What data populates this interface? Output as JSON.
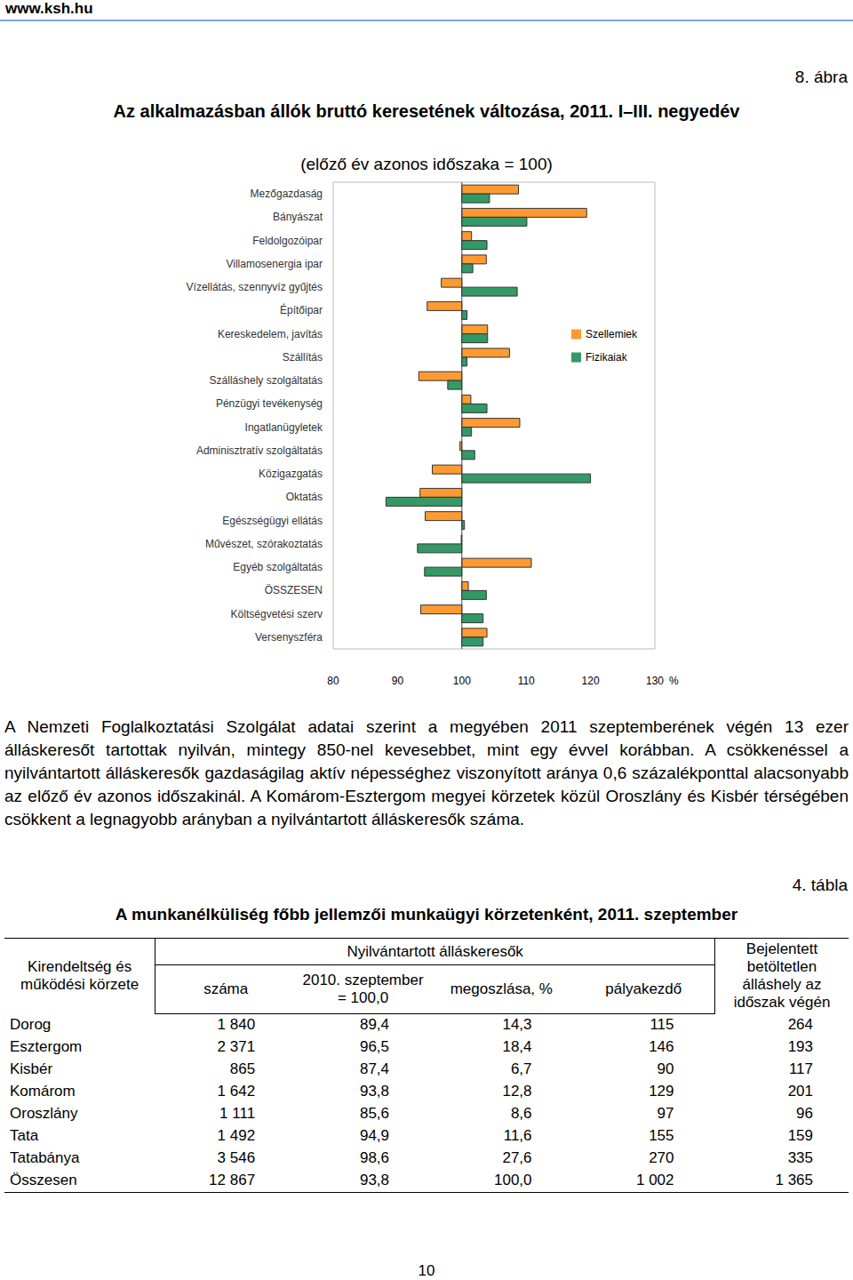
{
  "site": "www.ksh.hu",
  "figure_label": "8. ábra",
  "chart_data": {
    "type": "bar",
    "orientation": "horizontal",
    "title": "Az alkalmazásban állók bruttó keresetének változása, 2011. I–III. negyedév",
    "subtitle": "(előző év azonos időszaka = 100)",
    "xlabel": "%",
    "base": 100,
    "categories": [
      "Mezőgazdaság",
      "Bányászat",
      "Feldolgozóipar",
      "Villamosenergia ipar",
      "Vízellátás, szennyvíz gyűjtés",
      "Építőipar",
      "Kereskedelem, javítás",
      "Szállítás",
      "Szálláshely szolgáltatás",
      "Pénzügyi tevékenység",
      "Ingatlanügyletek",
      "Adminisztratív szolgáltatás",
      "Közigazgatás",
      "Oktatás",
      "Egészségügyi ellátás",
      "Művészet, szórakoztatás",
      "Egyéb szolgáltatás",
      "ÖSSZESEN",
      "Költségvetési szerv",
      "Versenyszféra"
    ],
    "series": [
      {
        "name": "Szellemiek",
        "color": "#ff9a33",
        "values": [
          108.8,
          119.4,
          101.5,
          103.8,
          96.8,
          94.6,
          104.0,
          107.4,
          93.3,
          101.4,
          109.0,
          99.7,
          95.4,
          93.5,
          94.3,
          99.9,
          110.8,
          101.0,
          93.6,
          103.9
        ]
      },
      {
        "name": "Fizikaiak",
        "color": "#339966",
        "values": [
          104.3,
          110.1,
          103.9,
          101.7,
          108.6,
          100.8,
          104.0,
          100.8,
          97.8,
          103.9,
          101.5,
          102.0,
          120.0,
          88.2,
          100.4,
          93.1,
          94.2,
          103.8,
          103.3,
          103.3
        ]
      }
    ],
    "xlim": [
      80,
      130
    ],
    "xticks": [
      80,
      90,
      100,
      110,
      120,
      130
    ],
    "grid": false,
    "legend": "right"
  },
  "paragraph": "A Nemzeti Foglalkoztatási Szolgálat adatai szerint a megyében 2011 szeptemberének végén 13 ezer álláskeresőt tartottak nyilván, mintegy 850-nel kevesebbet, mint egy évvel korábban. A csökkenéssel a nyilvántartott álláskeresők gazdaságilag aktív népességhez viszonyított aránya 0,6 százalékponttal alacsonyabb az előző év azonos időszakinál. A Komárom-Esztergom megyei körzetek közül Oroszlány és Kisbér térségében csökkent a legnagyobb arányban a nyilvántartott álláskeresők száma.",
  "table_label": "4. tábla",
  "table_title": "A munkanélküliség főbb jellemzői munkaügyi körzetenként, 2011. szeptember",
  "table": {
    "first_column_header": "Kirendeltség és működési körzete",
    "group_header": "Nyilvántartott álláskeresők",
    "group_columns": [
      "száma",
      "2010. szeptember = 100,0",
      "megoszlása, %",
      "pályakezdő"
    ],
    "last_column_header": "Bejelentett betöltetlen álláshely az időszak végén",
    "rows": [
      [
        "Dorog",
        "1 840",
        "89,4",
        "14,3",
        "115",
        "264"
      ],
      [
        "Esztergom",
        "2 371",
        "96,5",
        "18,4",
        "146",
        "193"
      ],
      [
        "Kisbér",
        "865",
        "87,4",
        "6,7",
        "90",
        "117"
      ],
      [
        "Komárom",
        "1 642",
        "93,8",
        "12,8",
        "129",
        "201"
      ],
      [
        "Oroszlány",
        "1 111",
        "85,6",
        "8,6",
        "97",
        "96"
      ],
      [
        "Tata",
        "1 492",
        "94,9",
        "11,6",
        "155",
        "159"
      ],
      [
        "Tatabánya",
        "3 546",
        "98,6",
        "27,6",
        "270",
        "335"
      ],
      [
        "Összesen",
        "12 867",
        "93,8",
        "100,0",
        "1 002",
        "1 365"
      ]
    ]
  },
  "page_number": "10"
}
